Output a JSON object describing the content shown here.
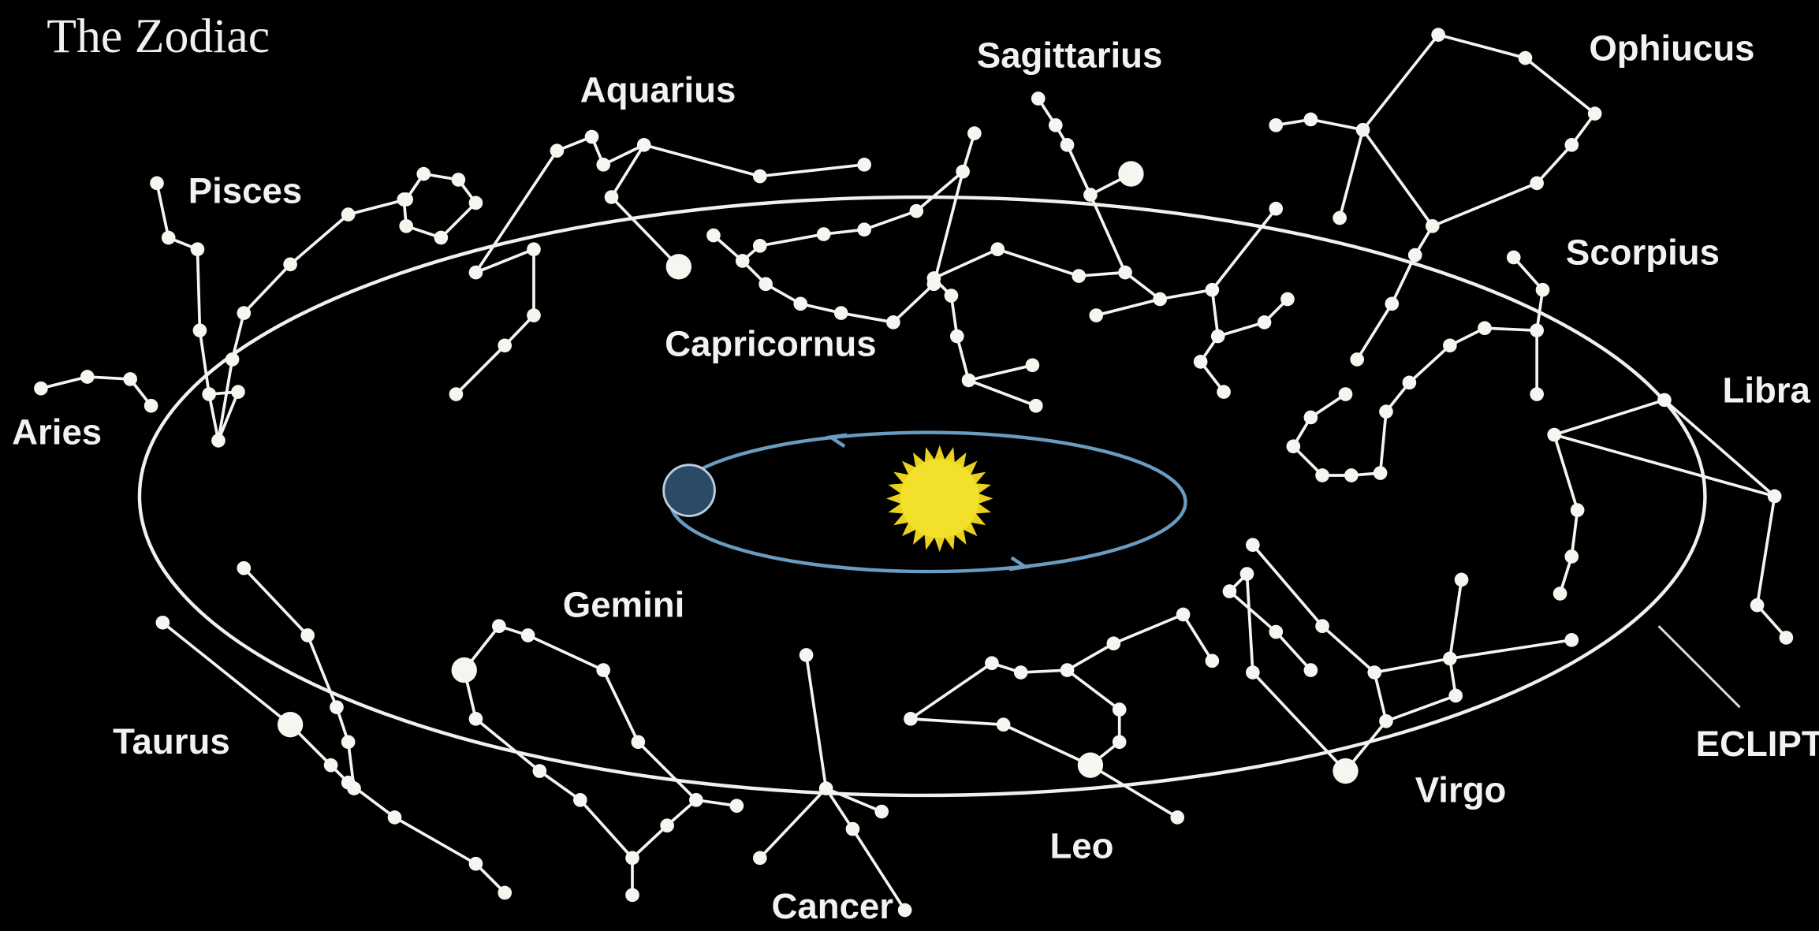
{
  "title": "The Zodiac",
  "labels": {
    "aquarius": "Aquarius",
    "sagittarius": "Sagittarius",
    "ophiucus": "Ophiucus",
    "pisces": "Pisces",
    "scorpius": "Scorpius",
    "aries": "Aries",
    "capricornus": "Capricornus",
    "libra": "Libra",
    "gemini": "Gemini",
    "taurus": "Taurus",
    "virgo": "Virgo",
    "ecliptic": "ECLIPT",
    "leo": "Leo",
    "cancer": "Cancer"
  }
}
